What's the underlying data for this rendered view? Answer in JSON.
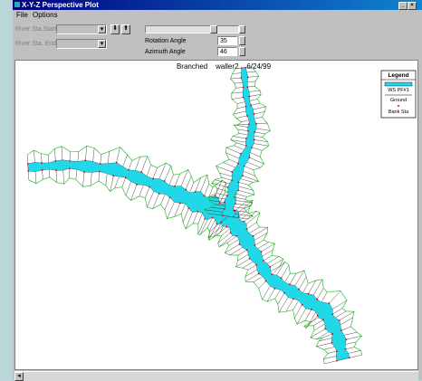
{
  "window": {
    "title": "X-Y-Z Perspective Plot"
  },
  "menu": [
    "File",
    "Options"
  ],
  "controls": {
    "river_sta_start": "River Sta.Start:",
    "river_sta_end": "River Sta. End:",
    "rotation_angle": {
      "label": "Rotation Angle",
      "value": 35
    },
    "azimuth_angle": {
      "label": "Azimuth Angle",
      "value": 46
    }
  },
  "plot": {
    "title": "Branched    waller2    6/24/99"
  },
  "legend": {
    "title": "Legend",
    "items": [
      "WS PF#1",
      "Ground",
      "Bank Sta"
    ]
  }
}
